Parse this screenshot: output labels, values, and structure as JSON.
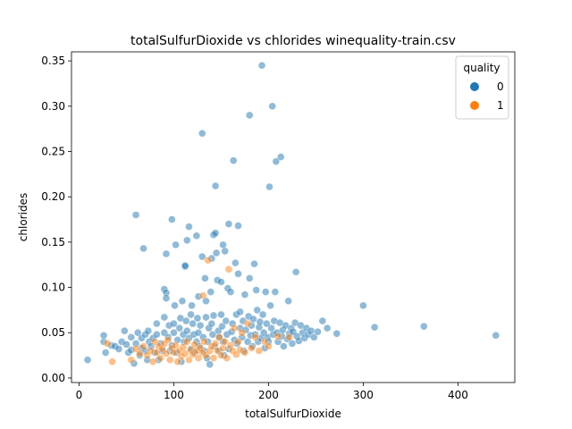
{
  "chart_data": {
    "type": "scatter",
    "title": "totalSulfurDioxide vs chlorides winequality-train.csv",
    "xlabel": "totalSulfurDioxide",
    "ylabel": "chlorides",
    "xlim": [
      -8,
      460
    ],
    "ylim": [
      -0.005,
      0.36
    ],
    "xticks": [
      0,
      100,
      200,
      300,
      400
    ],
    "yticks": [
      0.0,
      0.05,
      0.1,
      0.15,
      0.2,
      0.25,
      0.3,
      0.35
    ],
    "grid": false,
    "legend": {
      "title": "quality",
      "position": "top-right"
    },
    "series": [
      {
        "name": "0",
        "color": "#1f77b4",
        "points": [
          [
            9,
            0.02
          ],
          [
            26,
            0.04
          ],
          [
            26,
            0.047
          ],
          [
            28,
            0.028
          ],
          [
            34,
            0.036
          ],
          [
            38,
            0.035
          ],
          [
            42,
            0.032
          ],
          [
            45,
            0.04
          ],
          [
            48,
            0.052
          ],
          [
            50,
            0.037
          ],
          [
            52,
            0.028
          ],
          [
            55,
            0.031
          ],
          [
            55,
            0.045
          ],
          [
            58,
            0.016
          ],
          [
            60,
            0.18
          ],
          [
            60,
            0.038
          ],
          [
            62,
            0.05
          ],
          [
            64,
            0.025
          ],
          [
            66,
            0.033
          ],
          [
            66,
            0.044
          ],
          [
            68,
            0.143
          ],
          [
            70,
            0.048
          ],
          [
            70,
            0.03
          ],
          [
            72,
            0.02
          ],
          [
            73,
            0.052
          ],
          [
            74,
            0.04
          ],
          [
            76,
            0.035
          ],
          [
            78,
            0.044
          ],
          [
            80,
            0.028
          ],
          [
            82,
            0.06
          ],
          [
            82,
            0.048
          ],
          [
            84,
            0.02
          ],
          [
            86,
            0.038
          ],
          [
            88,
            0.03
          ],
          [
            90,
            0.098
          ],
          [
            90,
            0.067
          ],
          [
            90,
            0.05
          ],
          [
            92,
            0.137
          ],
          [
            92,
            0.094
          ],
          [
            92,
            0.088
          ],
          [
            94,
            0.045
          ],
          [
            95,
            0.058
          ],
          [
            96,
            0.03
          ],
          [
            98,
            0.175
          ],
          [
            98,
            0.036
          ],
          [
            100,
            0.06
          ],
          [
            100,
            0.05
          ],
          [
            101,
            0.08
          ],
          [
            102,
            0.147
          ],
          [
            103,
            0.028
          ],
          [
            104,
            0.042
          ],
          [
            106,
            0.055
          ],
          [
            107,
            0.066
          ],
          [
            108,
            0.018
          ],
          [
            109,
            0.085
          ],
          [
            110,
            0.048
          ],
          [
            111,
            0.04
          ],
          [
            112,
            0.123
          ],
          [
            112,
            0.124
          ],
          [
            113,
            0.063
          ],
          [
            114,
            0.052
          ],
          [
            114,
            0.152
          ],
          [
            116,
            0.044
          ],
          [
            116,
            0.167
          ],
          [
            118,
            0.07
          ],
          [
            118,
            0.032
          ],
          [
            119,
            0.08
          ],
          [
            120,
            0.06
          ],
          [
            121,
            0.048
          ],
          [
            122,
            0.028
          ],
          [
            124,
            0.157
          ],
          [
            124,
            0.04
          ],
          [
            125,
            0.066
          ],
          [
            126,
            0.09
          ],
          [
            126,
            0.05
          ],
          [
            127,
            0.035
          ],
          [
            128,
            0.058
          ],
          [
            130,
            0.134
          ],
          [
            130,
            0.27
          ],
          [
            131,
            0.045
          ],
          [
            132,
            0.03
          ],
          [
            133,
            0.11
          ],
          [
            134,
            0.067
          ],
          [
            134,
            0.085
          ],
          [
            135,
            0.022
          ],
          [
            136,
            0.04
          ],
          [
            137,
            0.055
          ],
          [
            138,
            0.015
          ],
          [
            139,
            0.095
          ],
          [
            140,
            0.06
          ],
          [
            140,
            0.132
          ],
          [
            141,
            0.048
          ],
          [
            142,
            0.158
          ],
          [
            142,
            0.069
          ],
          [
            143,
            0.035
          ],
          [
            144,
            0.16
          ],
          [
            144,
            0.212
          ],
          [
            145,
            0.138
          ],
          [
            146,
            0.108
          ],
          [
            147,
            0.052
          ],
          [
            148,
            0.03
          ],
          [
            148,
            0.045
          ],
          [
            150,
            0.106
          ],
          [
            150,
            0.07
          ],
          [
            151,
            0.057
          ],
          [
            152,
            0.147
          ],
          [
            152,
            0.04
          ],
          [
            153,
            0.025
          ],
          [
            154,
            0.14
          ],
          [
            155,
            0.063
          ],
          [
            156,
            0.048
          ],
          [
            157,
            0.099
          ],
          [
            158,
            0.17
          ],
          [
            158,
            0.032
          ],
          [
            160,
            0.095
          ],
          [
            161,
            0.051
          ],
          [
            162,
            0.06
          ],
          [
            163,
            0.24
          ],
          [
            164,
            0.042
          ],
          [
            165,
            0.127
          ],
          [
            166,
            0.07
          ],
          [
            167,
            0.038
          ],
          [
            168,
            0.115
          ],
          [
            168,
            0.168
          ],
          [
            170,
            0.073
          ],
          [
            170,
            0.055
          ],
          [
            172,
            0.045
          ],
          [
            173,
            0.063
          ],
          [
            174,
            0.03
          ],
          [
            175,
            0.092
          ],
          [
            176,
            0.053
          ],
          [
            178,
            0.04
          ],
          [
            179,
            0.068
          ],
          [
            180,
            0.11
          ],
          [
            180,
            0.29
          ],
          [
            181,
            0.047
          ],
          [
            182,
            0.058
          ],
          [
            183,
            0.035
          ],
          [
            184,
            0.065
          ],
          [
            185,
            0.126
          ],
          [
            186,
            0.048
          ],
          [
            187,
            0.097
          ],
          [
            188,
            0.075
          ],
          [
            189,
            0.04
          ],
          [
            190,
            0.056
          ],
          [
            191,
            0.062
          ],
          [
            192,
            0.044
          ],
          [
            193,
            0.345
          ],
          [
            194,
            0.07
          ],
          [
            195,
            0.05
          ],
          [
            196,
            0.033
          ],
          [
            197,
            0.095
          ],
          [
            198,
            0.06
          ],
          [
            199,
            0.045
          ],
          [
            200,
            0.04
          ],
          [
            201,
            0.211
          ],
          [
            202,
            0.08
          ],
          [
            203,
            0.055
          ],
          [
            204,
            0.3
          ],
          [
            205,
            0.048
          ],
          [
            206,
            0.063
          ],
          [
            207,
            0.095
          ],
          [
            208,
            0.239
          ],
          [
            209,
            0.05
          ],
          [
            210,
            0.04
          ],
          [
            212,
            0.061
          ],
          [
            213,
            0.244
          ],
          [
            214,
            0.046
          ],
          [
            215,
            0.053
          ],
          [
            216,
            0.035
          ],
          [
            218,
            0.058
          ],
          [
            220,
            0.043
          ],
          [
            221,
            0.085
          ],
          [
            222,
            0.049
          ],
          [
            224,
            0.055
          ],
          [
            225,
            0.038
          ],
          [
            226,
            0.051
          ],
          [
            228,
            0.061
          ],
          [
            229,
            0.117
          ],
          [
            230,
            0.046
          ],
          [
            232,
            0.041
          ],
          [
            234,
            0.058
          ],
          [
            236,
            0.05
          ],
          [
            238,
            0.044
          ],
          [
            240,
            0.055
          ],
          [
            242,
            0.048
          ],
          [
            245,
            0.052
          ],
          [
            248,
            0.045
          ],
          [
            252,
            0.051
          ],
          [
            257,
            0.063
          ],
          [
            262,
            0.055
          ],
          [
            272,
            0.049
          ],
          [
            300,
            0.08
          ],
          [
            312,
            0.056
          ],
          [
            364,
            0.057
          ],
          [
            440,
            0.047
          ]
        ]
      },
      {
        "name": "1",
        "color": "#ff7f0e",
        "points": [
          [
            30,
            0.038
          ],
          [
            35,
            0.018
          ],
          [
            55,
            0.02
          ],
          [
            60,
            0.032
          ],
          [
            64,
            0.027
          ],
          [
            68,
            0.035
          ],
          [
            72,
            0.025
          ],
          [
            76,
            0.03
          ],
          [
            78,
            0.018
          ],
          [
            80,
            0.04
          ],
          [
            82,
            0.028
          ],
          [
            84,
            0.035
          ],
          [
            86,
            0.022
          ],
          [
            88,
            0.032
          ],
          [
            90,
            0.038
          ],
          [
            92,
            0.027
          ],
          [
            94,
            0.042
          ],
          [
            96,
            0.02
          ],
          [
            98,
            0.033
          ],
          [
            100,
            0.028
          ],
          [
            102,
            0.036
          ],
          [
            104,
            0.018
          ],
          [
            106,
            0.03
          ],
          [
            108,
            0.024
          ],
          [
            110,
            0.034
          ],
          [
            112,
            0.027
          ],
          [
            114,
            0.04
          ],
          [
            116,
            0.02
          ],
          [
            118,
            0.031
          ],
          [
            120,
            0.026
          ],
          [
            122,
            0.037
          ],
          [
            124,
            0.03
          ],
          [
            126,
            0.022
          ],
          [
            128,
            0.033
          ],
          [
            130,
            0.028
          ],
          [
            131,
            0.091
          ],
          [
            132,
            0.04
          ],
          [
            134,
            0.025
          ],
          [
            136,
            0.13
          ],
          [
            138,
            0.03
          ],
          [
            140,
            0.035
          ],
          [
            142,
            0.022
          ],
          [
            144,
            0.038
          ],
          [
            146,
            0.03
          ],
          [
            148,
            0.045
          ],
          [
            150,
            0.025
          ],
          [
            152,
            0.033
          ],
          [
            154,
            0.04
          ],
          [
            156,
            0.022
          ],
          [
            158,
            0.12
          ],
          [
            160,
            0.036
          ],
          [
            162,
            0.03
          ],
          [
            164,
            0.055
          ],
          [
            166,
            0.026
          ],
          [
            168,
            0.04
          ],
          [
            170,
            0.031
          ],
          [
            172,
            0.05
          ],
          [
            175,
            0.028
          ],
          [
            178,
            0.06
          ],
          [
            182,
            0.033
          ],
          [
            186,
            0.045
          ],
          [
            190,
            0.03
          ],
          [
            196,
            0.04
          ],
          [
            200,
            0.035
          ],
          [
            210,
            0.046
          ],
          [
            222,
            0.045
          ]
        ]
      }
    ]
  }
}
